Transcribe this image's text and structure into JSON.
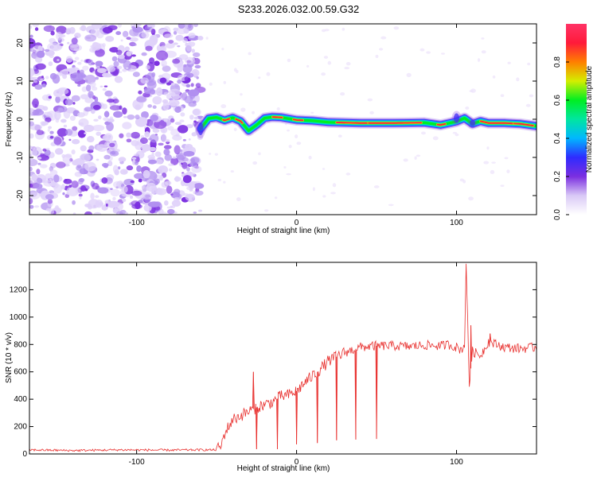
{
  "title": "S233.2026.032.00.59.G32",
  "colors": {
    "spectrogram_cmap": [
      "#ffffff",
      "#d9c9f6",
      "#7b2fe0",
      "#2f2bff",
      "#00b7ff",
      "#00e6a0",
      "#00ee22",
      "#d4ee00",
      "#ff7f00",
      "#ff1a3a",
      "#ff3366"
    ],
    "snr_line": "#e8302e",
    "axis": "#000000"
  },
  "chart_data": [
    {
      "type": "heatmap",
      "title": "S233.2026.032.00.59.G32",
      "xlabel": "Height of straight line (km)",
      "ylabel": "Frequency (Hz)",
      "xlim": [
        -167,
        150
      ],
      "ylim": [
        -25,
        25
      ],
      "xticks": [
        -100,
        0,
        100
      ],
      "yticks": [
        -20,
        -10,
        0,
        10,
        20
      ],
      "colorbar": {
        "label": "Normalized spectral amplitude",
        "range": [
          0,
          1
        ],
        "ticks": [
          0.0,
          0.2,
          0.4,
          0.6,
          0.8
        ]
      },
      "noise_region_x": [
        -167,
        -60
      ],
      "signal_frequency_track": {
        "x": [
          -60,
          -55,
          -50,
          -45,
          -40,
          -35,
          -30,
          -25,
          -20,
          -15,
          -10,
          0,
          10,
          20,
          40,
          60,
          80,
          90,
          100,
          105,
          110,
          115,
          120,
          130,
          140,
          150
        ],
        "y": [
          -2.5,
          0.2,
          0.5,
          -0.3,
          0.4,
          -0.5,
          -3.0,
          -1.5,
          0.3,
          0.6,
          0.5,
          -0.2,
          -0.4,
          -0.8,
          -1.0,
          -1.0,
          -0.9,
          -1.5,
          -0.6,
          0.3,
          -1.2,
          -0.5,
          -1.0,
          -1.0,
          -1.2,
          -1.8
        ]
      }
    },
    {
      "type": "line",
      "title": "",
      "xlabel": "Height of straight line (km)",
      "ylabel": "SNR (10 * v/v)",
      "xlim": [
        -167,
        150
      ],
      "ylim": [
        0,
        1400
      ],
      "xticks": [
        -100,
        0,
        100
      ],
      "yticks": [
        0,
        200,
        400,
        600,
        800,
        1000,
        1200
      ],
      "series": [
        {
          "name": "SNR",
          "x": [
            -167,
            -140,
            -110,
            -80,
            -60,
            -50,
            -47,
            -45,
            -40,
            -35,
            -30,
            -25,
            -20,
            -15,
            -10,
            -5,
            0,
            5,
            10,
            15,
            20,
            25,
            30,
            35,
            40,
            50,
            60,
            70,
            80,
            90,
            95,
            100,
            103,
            105,
            106,
            108,
            110,
            115,
            120,
            130,
            140,
            150
          ],
          "y": [
            30,
            25,
            30,
            28,
            30,
            30,
            60,
            150,
            250,
            280,
            310,
            340,
            360,
            380,
            420,
            430,
            460,
            520,
            570,
            620,
            680,
            710,
            740,
            760,
            780,
            790,
            790,
            785,
            795,
            790,
            800,
            780,
            760,
            800,
            1390,
            500,
            750,
            720,
            820,
            780,
            770,
            780
          ]
        }
      ],
      "spikes": [
        {
          "x": 106,
          "y": 1390
        },
        {
          "x": -27,
          "y": 600
        },
        {
          "x": 121,
          "y": 880
        },
        {
          "x": 109,
          "y": 940
        }
      ],
      "dips": [
        {
          "x": -25,
          "y": 35
        },
        {
          "x": -12,
          "y": 35
        },
        {
          "x": 0,
          "y": 70
        },
        {
          "x": 13,
          "y": 80
        },
        {
          "x": 25,
          "y": 100
        },
        {
          "x": 37,
          "y": 105
        },
        {
          "x": 50,
          "y": 110
        }
      ]
    }
  ]
}
